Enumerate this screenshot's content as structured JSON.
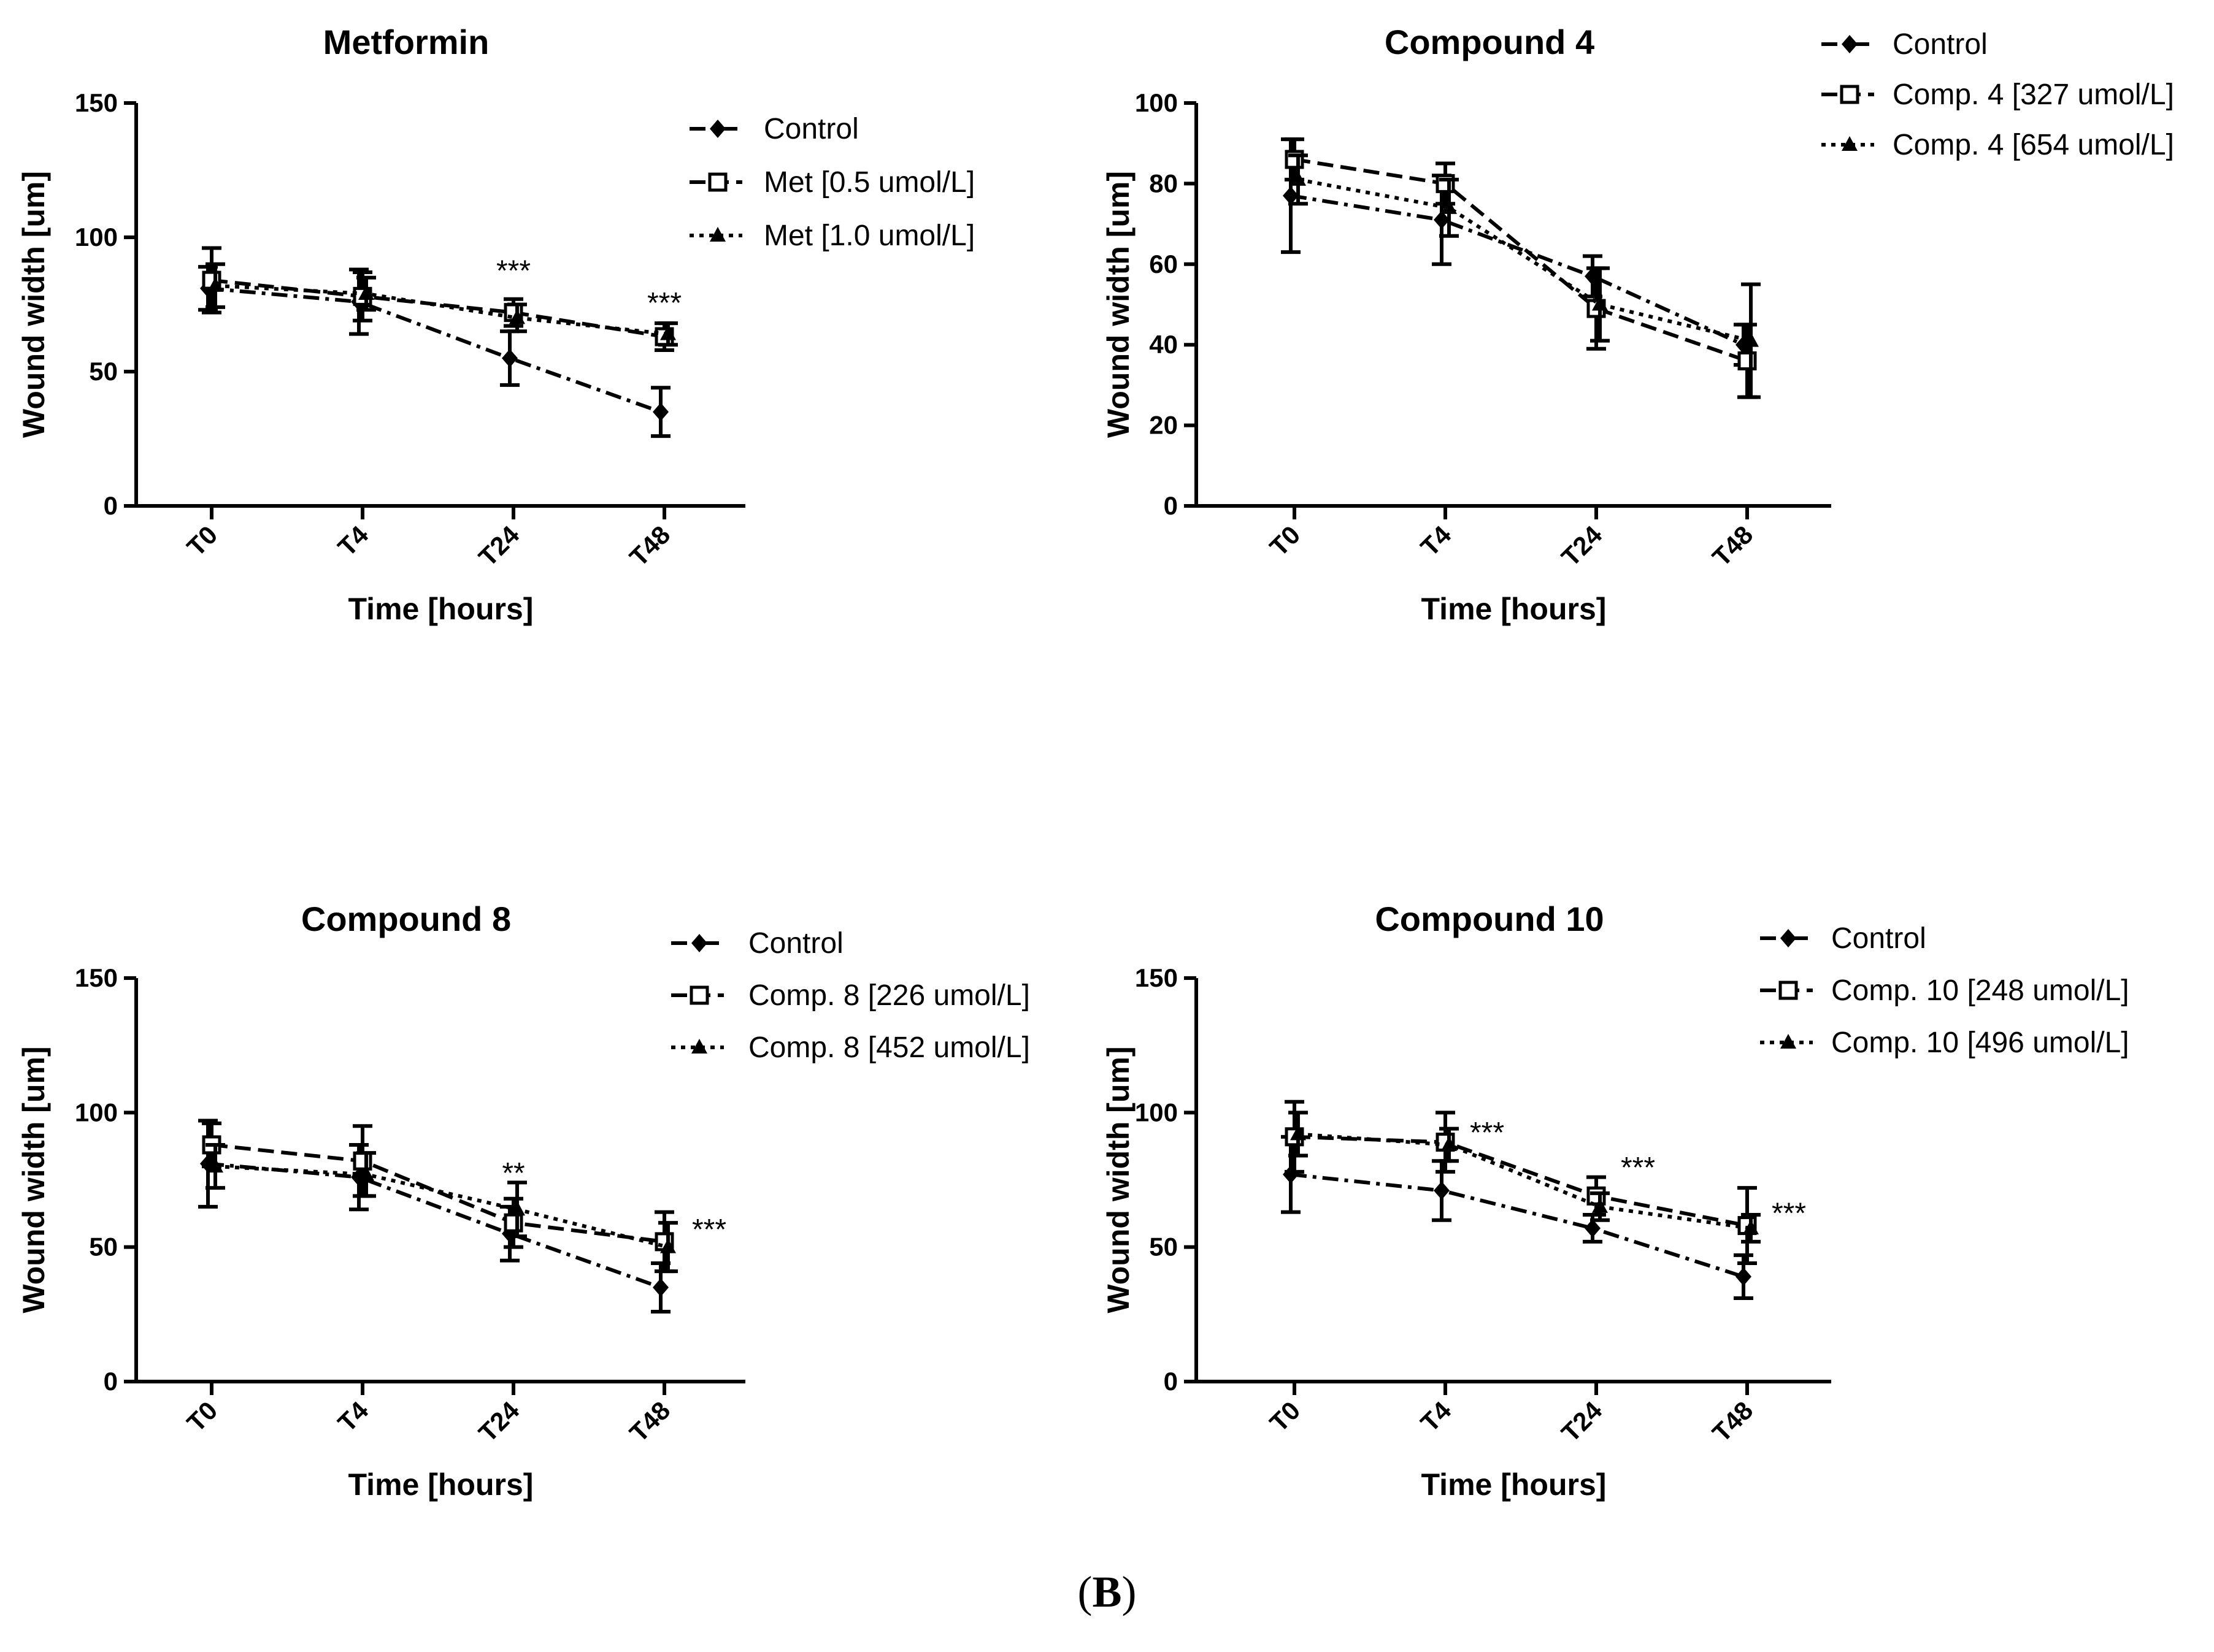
{
  "figure": {
    "panel_label_open": "(",
    "panel_label_letter": "B",
    "panel_label_close": ")"
  },
  "chart_data": [
    {
      "type": "line",
      "title": "Metformin",
      "xlabel": "Time [hours]",
      "ylabel": "Wound width [um]",
      "categories": [
        "T0",
        "T4",
        "T24",
        "T48"
      ],
      "ylim": [
        0,
        150
      ],
      "yticks": [
        0,
        50,
        100,
        150
      ],
      "series": [
        {
          "name": "Control",
          "marker": "diamond",
          "dash": "dashdot",
          "values": [
            81,
            76,
            55,
            35
          ],
          "errors": [
            8,
            12,
            10,
            9
          ]
        },
        {
          "name": "Met [0.5 umol/L]",
          "marker": "square",
          "dash": "dashed",
          "values": [
            84,
            78,
            72,
            63
          ],
          "errors": [
            12,
            9,
            5,
            5
          ]
        },
        {
          "name": "Met [1.0 umol/L]",
          "marker": "triangle",
          "dash": "dotted",
          "values": [
            82,
            79,
            70,
            64
          ],
          "errors": [
            8,
            6,
            5,
            4
          ]
        }
      ],
      "annotations": [
        {
          "category": "T24",
          "value": 88,
          "text": "***"
        },
        {
          "category": "T48",
          "value": 76,
          "text": "***"
        }
      ]
    },
    {
      "type": "line",
      "title": "Compound 4",
      "xlabel": "Time [hours]",
      "ylabel": "Wound width [um]",
      "categories": [
        "T0",
        "T4",
        "T24",
        "T48"
      ],
      "ylim": [
        0,
        100
      ],
      "yticks": [
        0,
        20,
        40,
        60,
        80,
        100
      ],
      "series": [
        {
          "name": "Control",
          "marker": "diamond",
          "dash": "dashdot",
          "values": [
            77,
            71,
            57,
            40
          ],
          "errors": [
            14,
            11,
            5,
            5
          ]
        },
        {
          "name": "Comp. 4 [327 umol/L]",
          "marker": "square",
          "dash": "dashed",
          "values": [
            86,
            80,
            49,
            36
          ],
          "errors": [
            5,
            5,
            10,
            9
          ]
        },
        {
          "name": "Comp. 4 [654 umol/L]",
          "marker": "triangle",
          "dash": "dotted",
          "values": [
            81,
            74,
            50,
            41
          ],
          "errors": [
            6,
            7,
            9,
            14
          ]
        }
      ],
      "annotations": []
    },
    {
      "type": "line",
      "title": "Compound 8",
      "xlabel": "Time [hours]",
      "ylabel": "Wound width [um]",
      "categories": [
        "T0",
        "T4",
        "T24",
        "T48"
      ],
      "ylim": [
        0,
        150
      ],
      "yticks": [
        0,
        50,
        100,
        150
      ],
      "series": [
        {
          "name": "Control",
          "marker": "diamond",
          "dash": "dashdot",
          "values": [
            81,
            76,
            55,
            35
          ],
          "errors": [
            16,
            12,
            10,
            9
          ]
        },
        {
          "name": "Comp. 8 [226 umol/L]",
          "marker": "square",
          "dash": "dashed",
          "values": [
            88,
            82,
            59,
            52
          ],
          "errors": [
            8,
            13,
            9,
            11
          ]
        },
        {
          "name": "Comp. 8 [452 umol/L]",
          "marker": "triangle",
          "dash": "dotted",
          "values": [
            80,
            77,
            64,
            50
          ],
          "errors": [
            8,
            8,
            10,
            9
          ]
        }
      ],
      "annotations": [
        {
          "category": "T24",
          "value": 78,
          "text": "**"
        },
        {
          "category": "T48",
          "value": 57,
          "text": "***"
        }
      ]
    },
    {
      "type": "line",
      "title": "Compound 10",
      "xlabel": "Time [hours]",
      "ylabel": "Wound width [um]",
      "categories": [
        "T0",
        "T4",
        "T24",
        "T48"
      ],
      "ylim": [
        0,
        150
      ],
      "yticks": [
        0,
        50,
        100,
        150
      ],
      "series": [
        {
          "name": "Control",
          "marker": "diamond",
          "dash": "dashdot",
          "values": [
            77,
            71,
            57,
            39
          ],
          "errors": [
            14,
            11,
            5,
            8
          ]
        },
        {
          "name": "Comp. 10 [248 umol/L]",
          "marker": "square",
          "dash": "dashed",
          "values": [
            91,
            89,
            69,
            58
          ],
          "errors": [
            13,
            11,
            7,
            14
          ]
        },
        {
          "name": "Comp. 10 [496 umol/L]",
          "marker": "triangle",
          "dash": "dotted",
          "values": [
            92,
            88,
            65,
            57
          ],
          "errors": [
            8,
            6,
            5,
            5
          ]
        }
      ],
      "annotations": [
        {
          "category": "T4",
          "value": 93,
          "text": "***"
        },
        {
          "category": "T24",
          "value": 80,
          "text": "***"
        },
        {
          "category": "T48",
          "value": 63,
          "text": "***"
        }
      ]
    }
  ]
}
